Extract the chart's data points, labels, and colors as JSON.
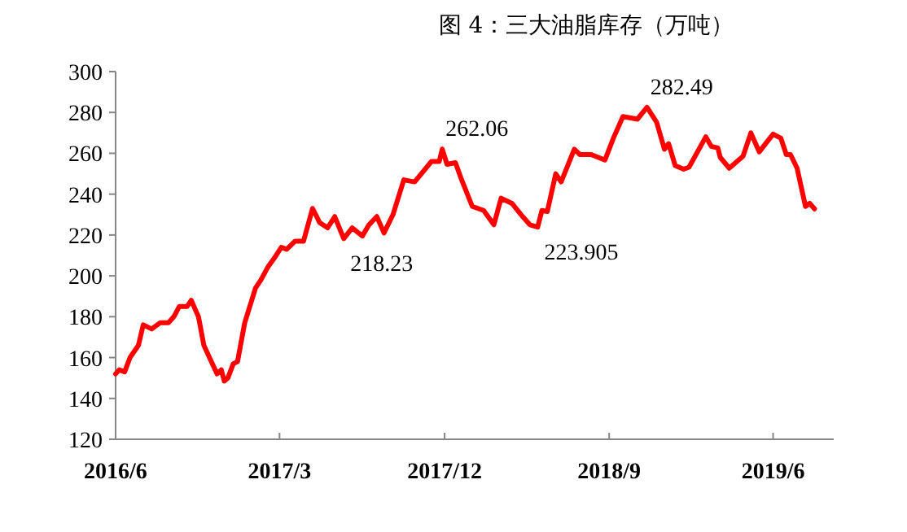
{
  "chart_data": {
    "type": "line",
    "title": "图 4：三大油脂库存（万吨）",
    "color": "#ff0000",
    "x": [
      "2016-06-01",
      "2016-06-07",
      "2016-06-16",
      "2016-06-25",
      "2016-07-09",
      "2016-07-17",
      "2016-07-31",
      "2016-08-14",
      "2016-08-28",
      "2016-09-06",
      "2016-09-15",
      "2016-09-28",
      "2016-10-05",
      "2016-10-17",
      "2016-10-26",
      "2016-11-09",
      "2016-11-17",
      "2016-11-24",
      "2016-11-29",
      "2016-12-05",
      "2016-12-14",
      "2016-12-21",
      "2017-01-02",
      "2017-01-20",
      "2017-01-29",
      "2017-02-09",
      "2017-02-21",
      "2017-03-04",
      "2017-03-13",
      "2017-03-27",
      "2017-04-10",
      "2017-04-25",
      "2017-05-07",
      "2017-05-20",
      "2017-06-01",
      "2017-06-16",
      "2017-06-30",
      "2017-07-17",
      "2017-07-28",
      "2017-08-10",
      "2017-08-22",
      "2017-09-06",
      "2017-09-24",
      "2017-10-12",
      "2017-11-09",
      "2017-11-22",
      "2017-11-27",
      "2017-12-05",
      "2017-12-19",
      "2017-12-28",
      "2018-01-16",
      "2018-02-04",
      "2018-02-21",
      "2018-03-05",
      "2018-03-23",
      "2018-04-10",
      "2018-04-22",
      "2018-05-05",
      "2018-05-12",
      "2018-05-21",
      "2018-06-04",
      "2018-06-13",
      "2018-07-05",
      "2018-07-14",
      "2018-08-02",
      "2018-08-25",
      "2018-09-08",
      "2018-09-24",
      "2018-10-18",
      "2018-11-03",
      "2018-11-19",
      "2018-12-02",
      "2018-12-09",
      "2018-12-20",
      "2019-01-03",
      "2019-01-12",
      "2019-02-09",
      "2019-02-18",
      "2019-03-01",
      "2019-03-05",
      "2019-03-20",
      "2019-04-12",
      "2019-04-25",
      "2019-05-09",
      "2019-06-01",
      "2019-06-14",
      "2019-06-23",
      "2019-06-30",
      "2019-07-11",
      "2019-07-25",
      "2019-08-01",
      "2019-08-09"
    ],
    "values": [
      152,
      154,
      153,
      160,
      166,
      176,
      174,
      177,
      177,
      180,
      185,
      185,
      188,
      180,
      166,
      157,
      152,
      154,
      148.5,
      150,
      157,
      158,
      177,
      194,
      198,
      204,
      209,
      214,
      213,
      217,
      217,
      233,
      226,
      223.5,
      229,
      218.23,
      223.5,
      219.5,
      225,
      229,
      221,
      230,
      247,
      246,
      256,
      256,
      262.06,
      254.6,
      255.4,
      248,
      234,
      232,
      225,
      238,
      235.5,
      229,
      225,
      223.905,
      232,
      231.5,
      250,
      246,
      262,
      259.4,
      259.4,
      256.7,
      267.4,
      278,
      276.7,
      282.49,
      275.3,
      262,
      264.7,
      254,
      252.2,
      253.2,
      268.1,
      263.4,
      262.6,
      258,
      252.7,
      258.6,
      270,
      260.7,
      269.4,
      267.4,
      259.4,
      259.4,
      252.7,
      234,
      235.5,
      232.8
    ],
    "xlim": [
      "2016-06-01",
      "2019-09-10"
    ],
    "xticks": [
      {
        "value": "2016-06-01",
        "label": "2016/6"
      },
      {
        "value": "2017-03-01",
        "label": "2017/3"
      },
      {
        "value": "2017-12-01",
        "label": "2017/12"
      },
      {
        "value": "2018-09-01",
        "label": "2018/9"
      },
      {
        "value": "2019-06-01",
        "label": "2019/6"
      }
    ],
    "ylim": [
      120,
      300
    ],
    "yticks": [
      120,
      140,
      160,
      180,
      200,
      220,
      240,
      260,
      280,
      300
    ],
    "annotations": [
      {
        "text": "218.23",
        "x": "2017-06-16",
        "y": 218.23
      },
      {
        "text": "262.06",
        "x": "2017-11-27",
        "y": 262.06
      },
      {
        "text": "223.905",
        "x": "2018-05-05",
        "y": 223.905
      },
      {
        "text": "282.49",
        "x": "2018-11-03",
        "y": 282.49
      }
    ]
  }
}
